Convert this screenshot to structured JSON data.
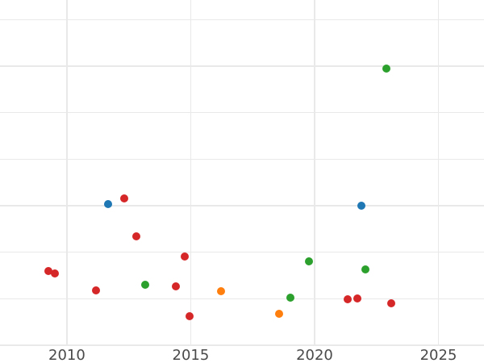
{
  "chart_data": {
    "type": "scatter",
    "title": "",
    "xlabel": "",
    "ylabel": "",
    "grid": true,
    "legend_position": "none",
    "x_tick_labels": [
      "2010",
      "2015",
      "2020",
      "2025"
    ],
    "x_ticks": [
      2010,
      2015,
      2020,
      2025
    ],
    "x_range": [
      2007.3,
      2026.84
    ],
    "y_range": [
      -0.38,
      7.42
    ],
    "y_gridline_values": [
      0,
      1,
      2,
      3,
      4,
      5,
      6,
      7
    ],
    "y_tick_labels_visible": false,
    "series": [
      {
        "name": "red",
        "color": "#d62728",
        "points": [
          [
            2009.27,
            1.6
          ],
          [
            2009.5,
            1.55
          ],
          [
            2011.18,
            1.18
          ],
          [
            2012.3,
            3.16
          ],
          [
            2012.82,
            2.34
          ],
          [
            2014.4,
            1.27
          ],
          [
            2014.76,
            1.91
          ],
          [
            2014.95,
            0.63
          ],
          [
            2021.33,
            0.99
          ],
          [
            2021.74,
            1.01
          ],
          [
            2023.09,
            0.9
          ]
        ]
      },
      {
        "name": "green",
        "color": "#2ca02c",
        "points": [
          [
            2013.17,
            1.31
          ],
          [
            2019.02,
            1.03
          ],
          [
            2019.77,
            1.8
          ],
          [
            2022.04,
            1.63
          ],
          [
            2022.9,
            5.95
          ]
        ]
      },
      {
        "name": "blue",
        "color": "#1f77b4",
        "points": [
          [
            2011.68,
            3.03
          ],
          [
            2021.9,
            3.0
          ]
        ]
      },
      {
        "name": "orange",
        "color": "#ff7f0e",
        "points": [
          [
            2016.23,
            1.17
          ],
          [
            2018.57,
            0.67
          ]
        ]
      }
    ]
  }
}
